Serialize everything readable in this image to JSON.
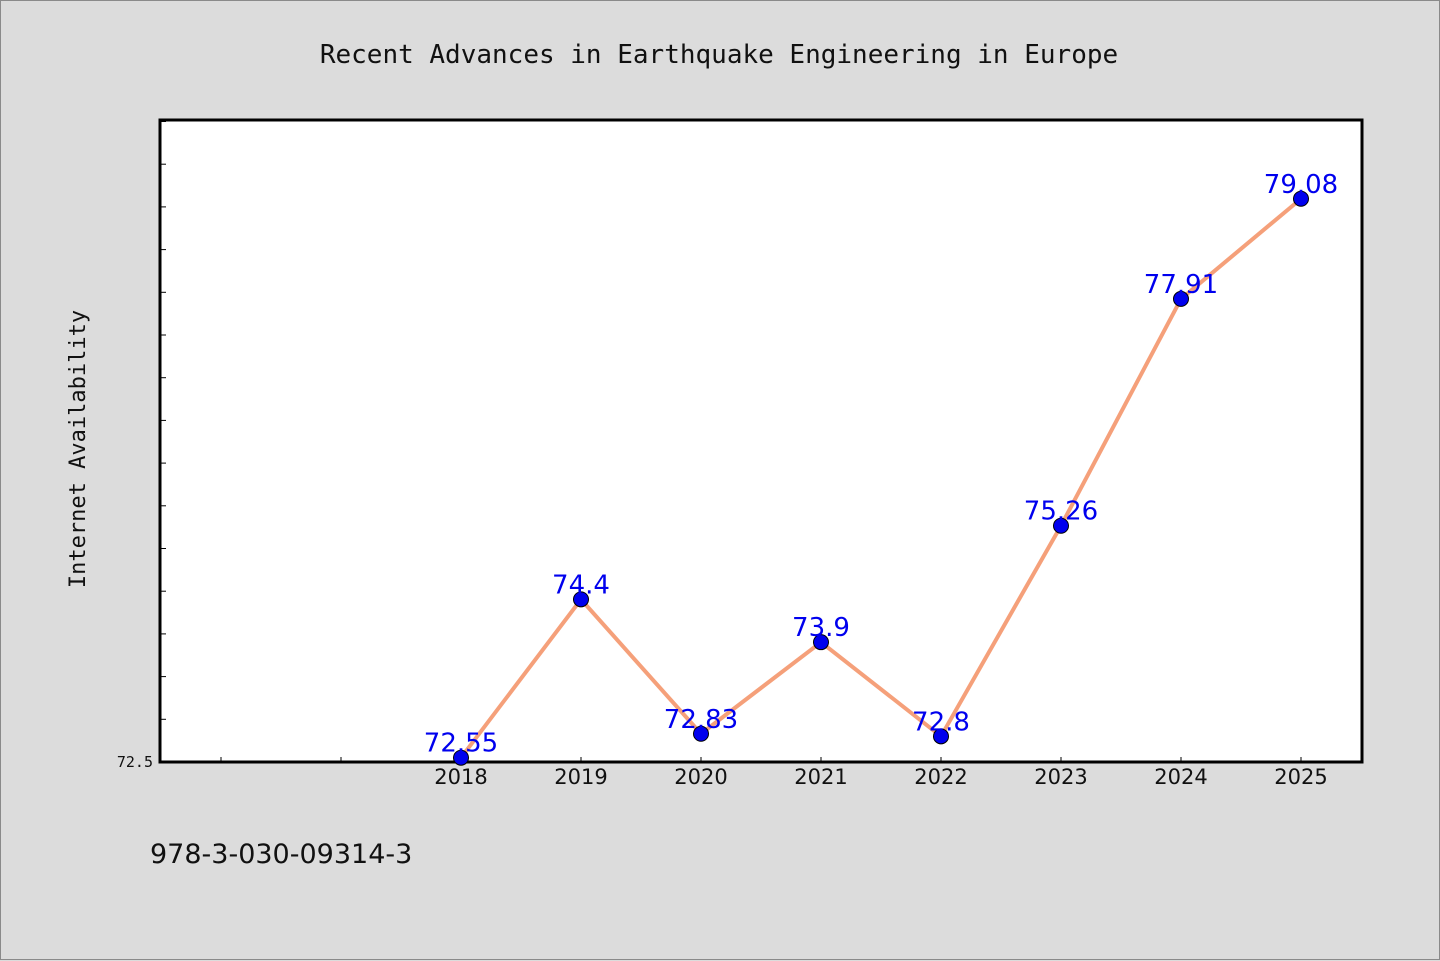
{
  "chart_data": {
    "type": "line",
    "title": "Recent Advances in Earthquake Engineering in Europe",
    "ylabel": "Internet Availability",
    "xlabel": "",
    "categories": [
      "2018",
      "2019",
      "2020",
      "2021",
      "2022",
      "2023",
      "2024",
      "2025"
    ],
    "series": [
      {
        "values": [
          72.55,
          74.4,
          72.83,
          73.9,
          72.8,
          75.26,
          77.91,
          79.08
        ],
        "labels": [
          "72.55",
          "74.4",
          "72.83",
          "73.9",
          "72.8",
          "75.26",
          "77.91",
          "79.08"
        ]
      }
    ],
    "y_tick_labels": [
      "72.5"
    ],
    "ylim": [
      72.5,
      80.0
    ],
    "grid": false,
    "colors": {
      "line": "#f5a07a",
      "marker": "#0000ee",
      "label": "#0000ee"
    }
  },
  "footer": {
    "text": "978-3-030-09314-3"
  }
}
